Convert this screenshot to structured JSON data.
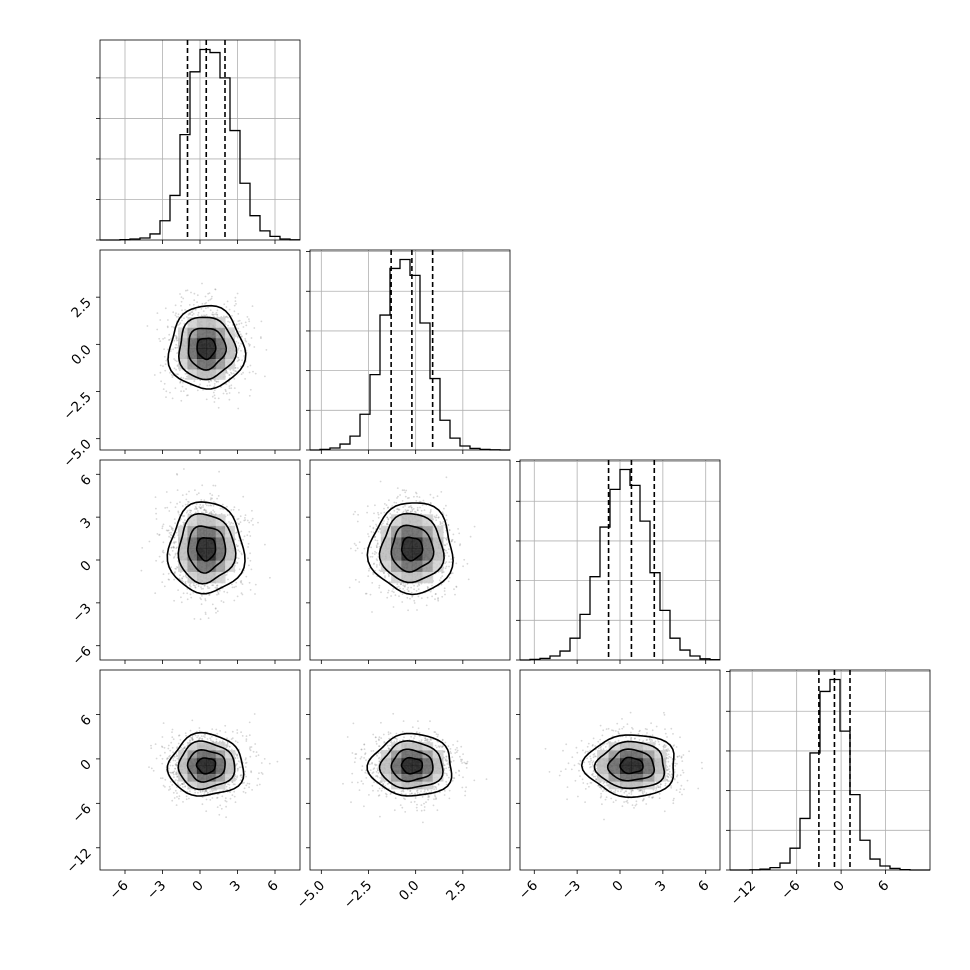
{
  "chart_data": {
    "type": "corner",
    "grid": true,
    "parameters": [
      {
        "index": 0,
        "mean": 0.5,
        "std": 1.5,
        "quantiles": [
          -1.0,
          0.5,
          2.0
        ],
        "range": [
          -8,
          8
        ],
        "ticks": [
          -6,
          -3,
          0,
          3,
          6
        ],
        "tick_labels": [
          "−6",
          "−3",
          "0",
          "3",
          "6"
        ]
      },
      {
        "index": 1,
        "mean": -0.2,
        "std": 1.1,
        "quantiles": [
          -1.3,
          -0.2,
          0.9
        ],
        "range": [
          -5.6,
          5.0
        ],
        "ticks": [
          -5.0,
          -2.5,
          0.0,
          2.5
        ],
        "tick_labels": [
          "−5.0",
          "−2.5",
          "0.0",
          "2.5"
        ]
      },
      {
        "index": 2,
        "mean": 0.8,
        "std": 1.6,
        "quantiles": [
          -0.8,
          0.8,
          2.4
        ],
        "range": [
          -7,
          7
        ],
        "ticks": [
          -6,
          -3,
          0,
          3,
          6
        ],
        "tick_labels": [
          "−6",
          "−3",
          "0",
          "3",
          "6"
        ]
      },
      {
        "index": 3,
        "mean": -0.9,
        "std": 2.1,
        "quantiles": [
          -3.0,
          -0.9,
          1.2
        ],
        "range": [
          -15,
          12
        ],
        "ticks": [
          -12,
          -6,
          0,
          6
        ],
        "tick_labels": [
          "−12",
          "−6",
          "0",
          "6"
        ]
      }
    ],
    "histograms": [
      {
        "param": 0,
        "bin_edges": [
          -8,
          -7.2,
          -6.4,
          -5.6,
          -4.8,
          -4,
          -3.2,
          -2.4,
          -1.6,
          -0.8,
          0,
          0.8,
          1.6,
          2.4,
          3.2,
          4,
          4.8,
          5.6,
          6.4,
          7.2,
          8
        ],
        "counts": [
          0,
          0,
          2,
          5,
          10,
          30,
          95,
          220,
          520,
          830,
          940,
          925,
          800,
          540,
          280,
          120,
          45,
          18,
          5,
          1
        ]
      },
      {
        "param": 1,
        "bin_edges": [
          -5.6,
          -5.07,
          -4.54,
          -4.01,
          -3.48,
          -2.95,
          -2.42,
          -1.89,
          -1.36,
          -0.83,
          -0.3,
          0.23,
          0.76,
          1.29,
          1.82,
          2.35,
          2.88,
          3.41,
          3.94,
          4.47,
          5.0
        ],
        "counts": [
          0,
          3,
          10,
          30,
          70,
          180,
          380,
          680,
          915,
          960,
          880,
          640,
          360,
          150,
          60,
          20,
          8,
          3,
          1,
          0
        ]
      },
      {
        "param": 2,
        "bin_edges": [
          -7,
          -6.3,
          -5.6,
          -4.9,
          -4.2,
          -3.5,
          -2.8,
          -2.1,
          -1.4,
          -0.7,
          0,
          0.7,
          1.4,
          2.1,
          2.8,
          3.5,
          4.2,
          4.9,
          5.6,
          6.3,
          7
        ],
        "counts": [
          0,
          3,
          8,
          20,
          45,
          110,
          230,
          420,
          670,
          860,
          960,
          880,
          700,
          440,
          250,
          110,
          50,
          20,
          6,
          2
        ]
      },
      {
        "param": 3,
        "bin_edges": [
          -15,
          -13.65,
          -12.3,
          -10.95,
          -9.6,
          -8.25,
          -6.9,
          -5.55,
          -4.2,
          -2.85,
          -1.5,
          -0.15,
          1.2,
          2.55,
          3.9,
          5.25,
          6.6,
          7.95,
          9.3,
          10.65,
          12
        ],
        "counts": [
          0,
          0,
          1,
          4,
          12,
          35,
          110,
          260,
          590,
          900,
          960,
          700,
          380,
          150,
          55,
          20,
          8,
          2,
          0,
          0
        ]
      }
    ],
    "pairs": [
      {
        "x_param": 0,
        "y_param": 1
      },
      {
        "x_param": 0,
        "y_param": 2
      },
      {
        "x_param": 1,
        "y_param": 2
      },
      {
        "x_param": 0,
        "y_param": 3
      },
      {
        "x_param": 1,
        "y_param": 3
      },
      {
        "x_param": 2,
        "y_param": 3
      }
    ],
    "contour_levels_sigma": [
      0.5,
      1.0,
      1.5,
      2.0
    ],
    "colors": {
      "points": "#8c8c8c",
      "density_dark": "#000000",
      "grid": "#b0b0b0"
    }
  }
}
